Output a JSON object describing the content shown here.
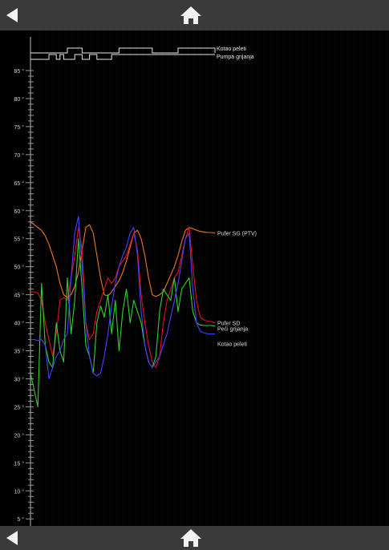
{
  "nav": {
    "back_icon": "back-arrow-icon",
    "home_icon": "home-icon"
  },
  "chart_data": {
    "type": "line",
    "title": "",
    "xlabel": "",
    "ylabel": "",
    "ylim": [
      5,
      85
    ],
    "y_ticks": [
      "85 °",
      "80 °",
      "75 °",
      "70 °",
      "65 °",
      "60 °",
      "55 °",
      "50 °",
      "45 °",
      "40 °",
      "35 °",
      "30 °",
      "25 °",
      "20 °",
      "15 °",
      "10 °",
      "5 °"
    ],
    "grid": true,
    "x": [
      0,
      2,
      4,
      6,
      8,
      10,
      12,
      14,
      16,
      18,
      20,
      22,
      24,
      26,
      28,
      30,
      32,
      34,
      36,
      38,
      40,
      42,
      44,
      46,
      48,
      50,
      52,
      54,
      56,
      58,
      60,
      62,
      64,
      66,
      68,
      70,
      72,
      74,
      76,
      78,
      80,
      82,
      84,
      86,
      88,
      90,
      92,
      94,
      96,
      98,
      100
    ],
    "series": [
      {
        "name": "Pufer SG (PTV)",
        "color": "#e87722",
        "values": [
          58,
          57.5,
          57,
          56.5,
          55.5,
          54,
          52,
          50,
          47,
          45,
          44.5,
          45,
          46.5,
          49,
          53,
          57,
          57.5,
          56,
          52,
          48,
          45,
          44.8,
          45.5,
          46.5,
          47.5,
          49,
          51,
          53.5,
          56,
          56.5,
          55,
          52,
          48,
          45,
          44.7,
          45,
          45.5,
          47,
          48.5,
          50,
          52,
          54.5,
          56.5,
          57,
          56.8,
          56.5,
          56.3,
          56.2,
          56.1,
          56.1,
          56
        ]
      },
      {
        "name": "Pufer SD",
        "color": "#e01020",
        "values": [
          45.5,
          45.5,
          45.3,
          44,
          40,
          37,
          34,
          38,
          44,
          44.5,
          44,
          48,
          52,
          57,
          53,
          40,
          37,
          38,
          42,
          44,
          46,
          48,
          47,
          48,
          50,
          51,
          52,
          54,
          56,
          53,
          45,
          40,
          36,
          33,
          32,
          34,
          40,
          44,
          46,
          48,
          49,
          52,
          55,
          57,
          50,
          44,
          41,
          40.5,
          40.3,
          40.2,
          40
        ]
      },
      {
        "name": "Peći grijanja",
        "color": "#2dd22d",
        "values": [
          31,
          28,
          25,
          47,
          36,
          33,
          32,
          40,
          35,
          33,
          48,
          38,
          44,
          55,
          46,
          36,
          34,
          31,
          40,
          43,
          41,
          45,
          38,
          44,
          35,
          42,
          46,
          40,
          44,
          42,
          40,
          36,
          33,
          32,
          34,
          42,
          46,
          45,
          44,
          48,
          42,
          46,
          47,
          48,
          42,
          40,
          39.6,
          39.5,
          39.5,
          39.5,
          39.4
        ]
      },
      {
        "name": "Kotao peleti",
        "color": "#4a3fff",
        "values": [
          37,
          37,
          36.8,
          37,
          36,
          30,
          32,
          34,
          35,
          37,
          38,
          48,
          56,
          59,
          50,
          40,
          34,
          31,
          30.5,
          31,
          34,
          38,
          43,
          47,
          50,
          52,
          53.5,
          56,
          57,
          52,
          42,
          36,
          33,
          32,
          33,
          34,
          36,
          38,
          41,
          44,
          47,
          51,
          55,
          56,
          46,
          40,
          38.5,
          38.2,
          38,
          38,
          38
        ]
      }
    ],
    "status_series": [
      {
        "name": "Kotao peleti",
        "values": [
          0,
          0,
          0,
          0,
          0,
          0,
          0,
          0,
          0,
          0,
          1,
          1,
          1,
          1,
          0,
          0,
          0,
          0,
          0,
          0,
          0,
          0,
          0,
          0,
          1,
          1,
          1,
          1,
          1,
          1,
          1,
          1,
          1,
          0,
          0,
          0,
          0,
          0,
          0,
          0,
          1,
          1,
          1,
          1,
          1,
          1,
          1,
          1,
          1,
          1,
          0
        ]
      },
      {
        "name": "Pumpa grijanja",
        "values": [
          0,
          0,
          0,
          0,
          0,
          1,
          1,
          0,
          1,
          0,
          0,
          0,
          1,
          1,
          0,
          0,
          1,
          1,
          0,
          0,
          0,
          0,
          1,
          1,
          1,
          1,
          1,
          1,
          1,
          1,
          1,
          1,
          1,
          1,
          1,
          1,
          1,
          1,
          1,
          1,
          1,
          1,
          1,
          1,
          1,
          1,
          1,
          1,
          1,
          1,
          1
        ]
      }
    ]
  }
}
